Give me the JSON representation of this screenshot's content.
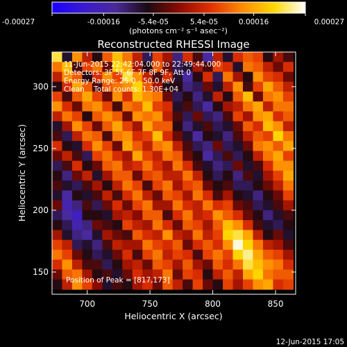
{
  "chart_data": {
    "type": "heatmap",
    "title": "Reconstructed RHESSI Image",
    "xlabel": "Heliocentric X (arcsec)",
    "ylabel": "Heliocentric Y (arcsec)",
    "xlim": [
      672,
      866
    ],
    "ylim": [
      132,
      328
    ],
    "x_ticks": [
      "700",
      "750",
      "800",
      "850"
    ],
    "y_ticks": [
      "150",
      "200",
      "250",
      "300"
    ],
    "colorbar": {
      "ticks": [
        "-0.00027",
        "-0.00016",
        "-5.4e-05",
        "5.4e-05",
        "0.00016",
        "0.00027"
      ],
      "range": [
        -0.00027,
        0.00027
      ],
      "unit_label": "(photons cm⁻² s⁻¹ asec⁻²)",
      "colors": [
        "#1a00ff",
        "#3a1ad0",
        "#4a2a9a",
        "#1a0a14",
        "#8a0a00",
        "#e03000",
        "#ff8a00",
        "#ffd800",
        "#ffffff"
      ]
    },
    "annotations": [
      "11-Jun-2015 22:42:04.000 to 22:49:44.000",
      "Detectors: 3F 5F 6F 7F 8F 9F, Att 0",
      "Energy Range: 25.0 - 50.0 keV",
      "Clean    Total counts: 1.30E+04"
    ],
    "peak_label": "Position of Peak = [817,173]",
    "peak": [
      817,
      173
    ],
    "footer_date": "12-Jun-2015 17:05",
    "grid": {
      "x_centers": [
        676,
        684,
        692,
        700,
        708,
        716,
        724,
        732,
        740,
        748,
        756,
        764,
        772,
        780,
        788,
        796,
        804,
        812,
        820,
        828,
        836,
        844,
        852,
        860
      ],
      "y_centers": [
        324,
        316,
        308,
        300,
        292,
        284,
        276,
        268,
        260,
        252,
        244,
        236,
        228,
        220,
        212,
        204,
        196,
        188,
        180,
        172,
        164,
        156,
        148,
        140
      ],
      "z_scale": 1e-05,
      "z": [
        [
          22,
          -8,
          14,
          4,
          -6,
          10,
          18,
          12,
          4,
          -10,
          8,
          2,
          -12,
          6,
          -4,
          -14,
          4,
          -8,
          6,
          10,
          8,
          -6,
          2,
          -4
        ],
        [
          12,
          18,
          -4,
          8,
          12,
          -2,
          20,
          16,
          2,
          -6,
          10,
          -2,
          -10,
          -8,
          2,
          -4,
          8,
          6,
          -8,
          12,
          10,
          4,
          -2,
          6
        ],
        [
          4,
          14,
          10,
          -6,
          6,
          14,
          8,
          22,
          14,
          4,
          -4,
          6,
          -8,
          -14,
          -6,
          6,
          -10,
          12,
          2,
          -6,
          14,
          8,
          6,
          -2
        ],
        [
          -6,
          6,
          16,
          10,
          -4,
          10,
          12,
          14,
          20,
          10,
          2,
          -6,
          -6,
          -12,
          -10,
          -2,
          -8,
          4,
          14,
          -4,
          8,
          16,
          10,
          4
        ],
        [
          8,
          -4,
          10,
          16,
          8,
          -2,
          14,
          6,
          18,
          14,
          12,
          -2,
          -10,
          -6,
          -12,
          -8,
          4,
          -6,
          10,
          18,
          -2,
          12,
          14,
          8
        ],
        [
          14,
          6,
          -2,
          12,
          14,
          8,
          -4,
          12,
          10,
          18,
          8,
          6,
          -8,
          -4,
          -10,
          -14,
          -6,
          2,
          4,
          12,
          16,
          4,
          12,
          12
        ],
        [
          4,
          12,
          8,
          -6,
          10,
          14,
          10,
          -2,
          14,
          12,
          14,
          4,
          -4,
          -10,
          -2,
          -10,
          -12,
          -4,
          8,
          2,
          14,
          16,
          6,
          10
        ],
        [
          -8,
          2,
          14,
          8,
          -2,
          10,
          16,
          8,
          2,
          16,
          10,
          10,
          -6,
          -12,
          -8,
          -4,
          -10,
          -8,
          -2,
          10,
          6,
          18,
          14,
          4
        ],
        [
          -4,
          -10,
          4,
          12,
          10,
          -4,
          12,
          14,
          6,
          8,
          18,
          6,
          -2,
          -8,
          -14,
          -6,
          -8,
          -12,
          -4,
          4,
          10,
          8,
          20,
          12
        ],
        [
          6,
          -6,
          -8,
          6,
          14,
          8,
          -2,
          16,
          10,
          4,
          12,
          14,
          4,
          -4,
          -10,
          -12,
          -2,
          -10,
          -8,
          -2,
          12,
          14,
          10,
          16
        ],
        [
          -2,
          4,
          -4,
          -10,
          8,
          12,
          6,
          2,
          16,
          8,
          4,
          12,
          10,
          -2,
          -6,
          -14,
          -10,
          -4,
          -10,
          -6,
          4,
          12,
          16,
          8
        ],
        [
          -10,
          -4,
          6,
          -6,
          -2,
          10,
          12,
          4,
          6,
          12,
          6,
          2,
          12,
          6,
          -4,
          -8,
          -12,
          -10,
          -2,
          -8,
          -4,
          6,
          14,
          14
        ],
        [
          -6,
          -12,
          -2,
          4,
          -8,
          2,
          10,
          10,
          -2,
          8,
          10,
          4,
          4,
          12,
          4,
          -6,
          -10,
          -6,
          -12,
          -4,
          -8,
          2,
          8,
          16
        ],
        [
          -4,
          -8,
          -10,
          -4,
          2,
          -6,
          4,
          12,
          8,
          -4,
          8,
          12,
          2,
          8,
          10,
          -2,
          -6,
          -4,
          -10,
          -10,
          -6,
          -2,
          4,
          12
        ],
        [
          -8,
          -14,
          -6,
          -8,
          -4,
          4,
          -4,
          6,
          12,
          4,
          -2,
          10,
          8,
          2,
          12,
          6,
          -4,
          2,
          -6,
          -8,
          -12,
          -6,
          -2,
          8
        ],
        [
          -2,
          -16,
          -12,
          -4,
          -10,
          -2,
          6,
          -2,
          8,
          12,
          2,
          2,
          12,
          6,
          4,
          12,
          6,
          8,
          -2,
          -4,
          -10,
          -8,
          -4,
          2
        ],
        [
          -10,
          -14,
          -18,
          -6,
          -6,
          -8,
          2,
          4,
          0,
          10,
          10,
          -4,
          6,
          12,
          4,
          6,
          14,
          10,
          6,
          -2,
          -6,
          -12,
          -8,
          -4
        ],
        [
          -6,
          -10,
          -16,
          -12,
          -2,
          -4,
          -6,
          8,
          4,
          2,
          12,
          6,
          -2,
          10,
          8,
          2,
          10,
          18,
          14,
          6,
          -4,
          -8,
          -10,
          -6
        ],
        [
          2,
          -8,
          -12,
          -14,
          -8,
          2,
          -2,
          -4,
          10,
          6,
          4,
          14,
          4,
          2,
          12,
          4,
          8,
          20,
          22,
          16,
          4,
          -6,
          -2,
          -8
        ],
        [
          8,
          4,
          -10,
          -8,
          -12,
          -4,
          4,
          2,
          2,
          12,
          8,
          6,
          10,
          -2,
          6,
          10,
          6,
          14,
          26,
          20,
          12,
          4,
          2,
          -4
        ],
        [
          12,
          8,
          -2,
          -6,
          -10,
          -8,
          -2,
          6,
          -4,
          8,
          12,
          4,
          8,
          6,
          -4,
          8,
          12,
          8,
          20,
          24,
          16,
          10,
          8,
          2
        ],
        [
          6,
          14,
          4,
          -4,
          -4,
          -10,
          -6,
          2,
          4,
          -2,
          10,
          8,
          2,
          10,
          2,
          -2,
          10,
          6,
          12,
          22,
          18,
          14,
          12,
          6
        ],
        [
          -2,
          10,
          12,
          2,
          -6,
          -4,
          -8,
          -2,
          6,
          2,
          4,
          12,
          -2,
          8,
          6,
          -6,
          4,
          10,
          4,
          16,
          20,
          12,
          10,
          10
        ],
        [
          -6,
          4,
          14,
          8,
          0,
          -8,
          -4,
          -6,
          2,
          6,
          -2,
          10,
          4,
          -4,
          8,
          -2,
          -6,
          8,
          2,
          8,
          14,
          16,
          6,
          8
        ]
      ]
    }
  }
}
